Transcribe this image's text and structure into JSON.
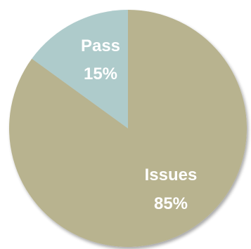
{
  "chart_data": {
    "type": "pie",
    "title": "",
    "legend": "none",
    "start_angle": "12 o'clock",
    "direction": "clockwise",
    "slices": [
      {
        "label": "Issues",
        "value": 85,
        "value_label": "85%",
        "color": "#b8b38f"
      },
      {
        "label": "Pass",
        "value": 15,
        "value_label": "15%",
        "color": "#aecbcb"
      }
    ]
  }
}
